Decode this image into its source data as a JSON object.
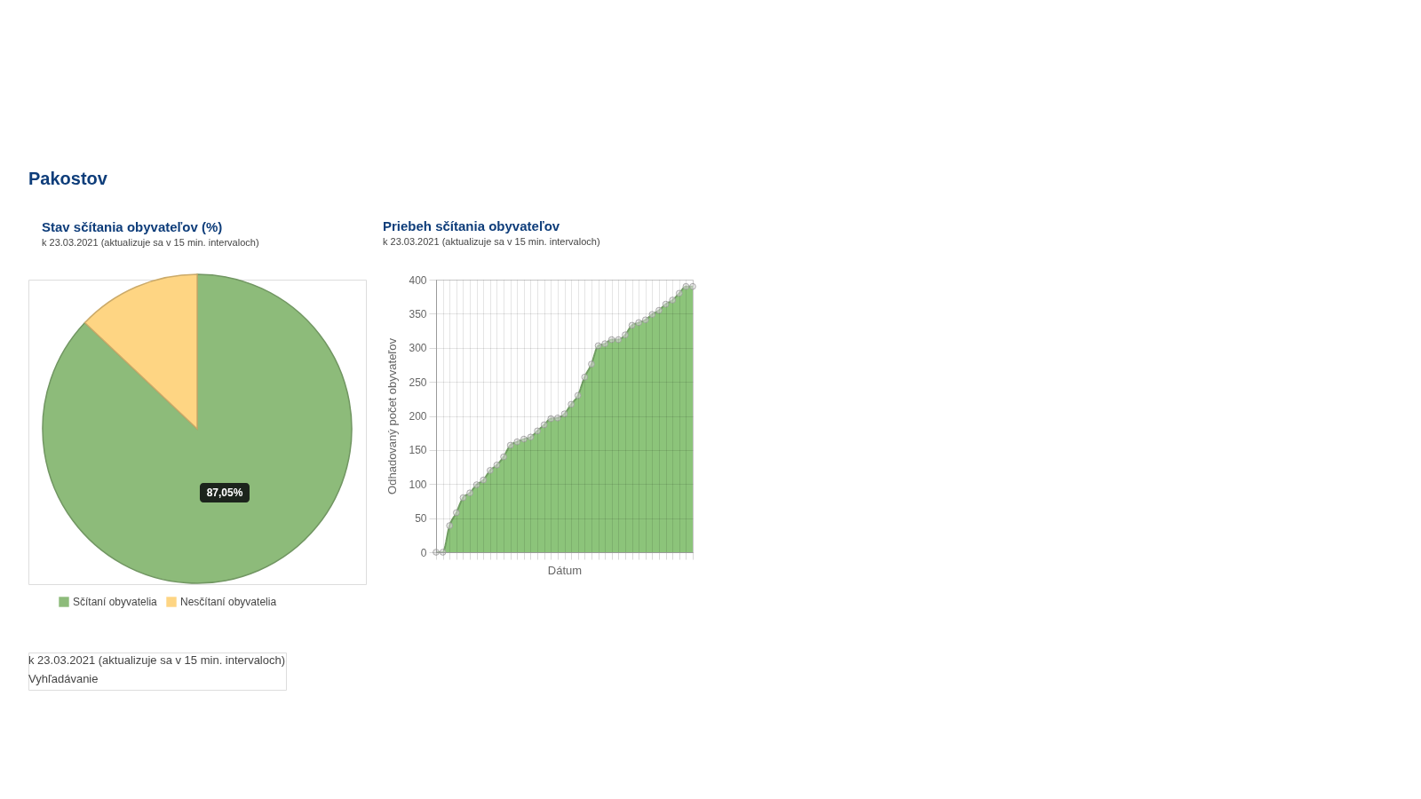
{
  "chart_data": [
    {
      "type": "other",
      "title": "Pakostov"
    },
    {
      "type": "pie",
      "title": "Stav sčítania obyvateľov (%)",
      "subtitle": "k 23.03.2021 (aktualizuje sa v 15 min. intervaloch)",
      "categories": [
        "Sčítaní obyvatelia",
        "Nesčítaní obyvatelia"
      ],
      "values": [
        87.05,
        12.95
      ],
      "colors": [
        "#8dbb7a",
        "#fed583"
      ],
      "value_labels": [
        "87,05%",
        null
      ],
      "legend": "bottom"
    },
    {
      "type": "area",
      "title": "Priebeh sčítania obyvateľov",
      "subtitle": "k 23.03.2021 (aktualizuje sa v 15 min. intervaloch)",
      "xlabel": "Dátum",
      "ylabel": "Odhadovaný počet obyvateľov",
      "categories": [
        null,
        null,
        null,
        null,
        null,
        null,
        null,
        null,
        null,
        null,
        null,
        null,
        null,
        null,
        null,
        null,
        null,
        null,
        null,
        null,
        null,
        null,
        null,
        null,
        null,
        null,
        null,
        null,
        null,
        null,
        null,
        null,
        null,
        null,
        null,
        null,
        null,
        null,
        null
      ],
      "series": [
        {
          "color": "#8cc47a",
          "values": [
            0,
            0,
            39,
            58,
            80,
            87,
            99,
            106,
            120,
            128,
            140,
            157,
            162,
            166,
            169,
            178,
            187,
            196,
            197,
            203,
            217,
            230,
            257,
            276,
            303,
            306,
            312,
            312,
            319,
            333,
            337,
            341,
            349,
            355,
            364,
            370,
            380,
            390,
            390
          ]
        }
      ],
      "ylim": [
        0,
        400
      ],
      "yticks": [
        0,
        50,
        100,
        150,
        200,
        250,
        300,
        350,
        400
      ],
      "grid": true,
      "marker": "circle",
      "tick_labels": "y"
    },
    {
      "type": "other",
      "annotations": [
        "k 23.03.2021 (aktualizuje sa v 15 min. intervaloch)",
        "Vyhľadávanie"
      ]
    }
  ]
}
